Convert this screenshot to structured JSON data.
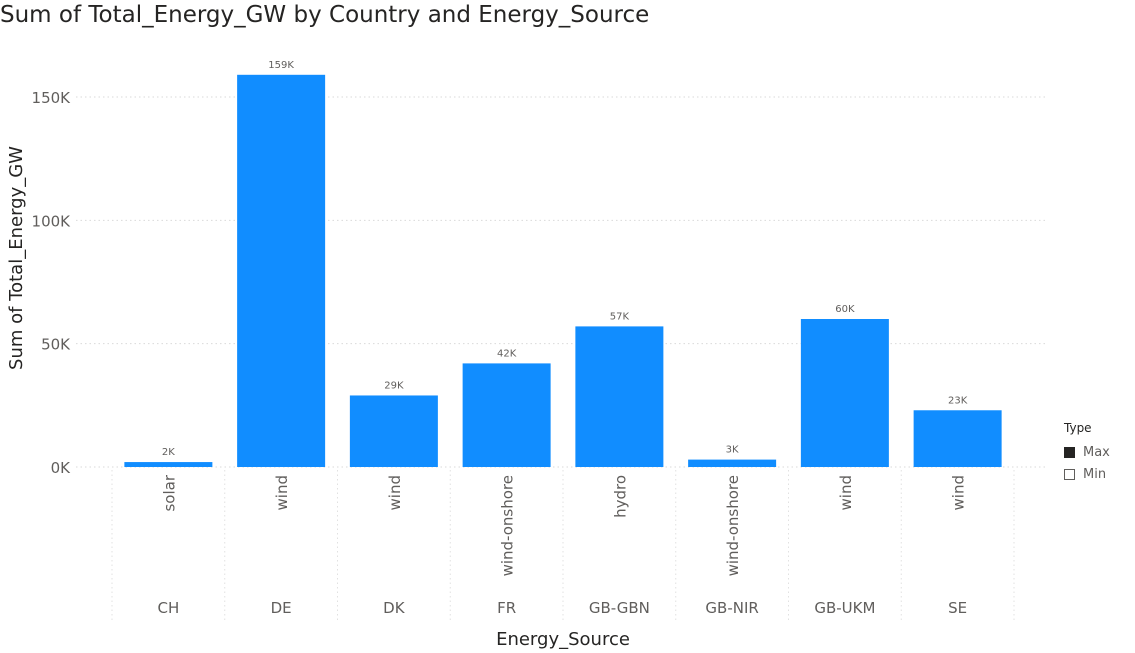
{
  "chart_data": {
    "type": "bar",
    "title": "Sum of Total_Energy_GW by Country and Energy_Source",
    "xlabel": "Energy_Source",
    "ylabel": "Sum of Total_Energy_GW",
    "ylim": [
      0,
      165000
    ],
    "yticks": [
      {
        "value": 0,
        "label": "0K"
      },
      {
        "value": 50000,
        "label": "50K"
      },
      {
        "value": 100000,
        "label": "100K"
      },
      {
        "value": 150000,
        "label": "150K"
      }
    ],
    "grid": true,
    "bar_color": "#118DFF",
    "categories": [
      {
        "country": "CH",
        "source": "solar",
        "value": 2000,
        "label": "2K"
      },
      {
        "country": "DE",
        "source": "wind",
        "value": 159000,
        "label": "159K"
      },
      {
        "country": "DK",
        "source": "wind",
        "value": 29000,
        "label": "29K"
      },
      {
        "country": "FR",
        "source": "wind-onshore",
        "value": 42000,
        "label": "42K"
      },
      {
        "country": "GB-GBN",
        "source": "hydro",
        "value": 57000,
        "label": "57K"
      },
      {
        "country": "GB-NIR",
        "source": "wind-onshore",
        "value": 3000,
        "label": "3K"
      },
      {
        "country": "GB-UKM",
        "source": "wind",
        "value": 60000,
        "label": "60K"
      },
      {
        "country": "SE",
        "source": "wind",
        "value": 23000,
        "label": "23K"
      }
    ],
    "legend": {
      "title": "Type",
      "position": "right",
      "items": [
        {
          "label": "Max",
          "style": "filled"
        },
        {
          "label": "Min",
          "style": "empty"
        }
      ]
    }
  }
}
